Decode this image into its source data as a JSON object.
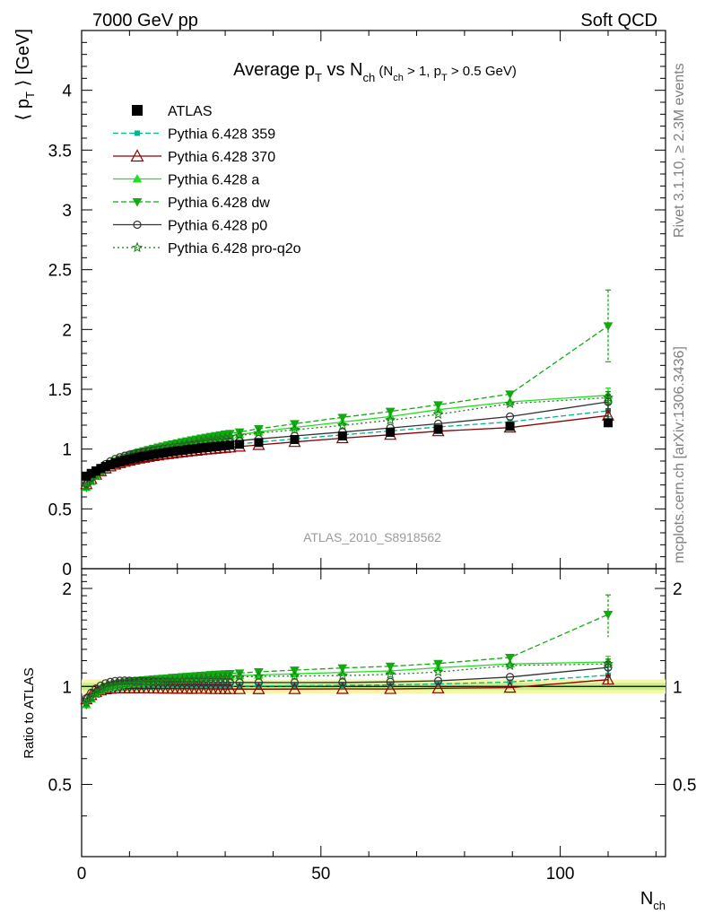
{
  "header": {
    "left": "7000 GeV pp",
    "right": "Soft QCD"
  },
  "side_labels": {
    "rivet": "Rivet 3.1.10, ≥ 2.3M events",
    "mcplots": "mcplots.cern.ch [arXiv:1306.3436]"
  },
  "chart_data": {
    "type": "line",
    "title": {
      "main": "Average p",
      "main_sub": "T",
      "mid": " vs N",
      "mid_sub": "ch",
      "cond_a": " (N",
      "cond_a_sub": "ch",
      "cond_b": " > 1, p",
      "cond_b_sub": "T",
      "cond_c": " > 0.5 GeV)"
    },
    "analysis_label": "ATLAS_2010_S8918562",
    "ylabel": {
      "pre": "⟨ p",
      "sub": "T",
      "post": " ⟩  [GeV]"
    },
    "ratio_ylabel": "Ratio to ATLAS",
    "xlabel": {
      "main": "N",
      "sub": "ch"
    },
    "xlim": [
      0,
      122
    ],
    "ylim": [
      0,
      4.5
    ],
    "ratio_ylim": [
      0.3,
      2.3
    ],
    "xticks": [
      {
        "v": 0,
        "label": "0"
      },
      {
        "v": 50,
        "label": "50"
      },
      {
        "v": 100,
        "label": "100"
      }
    ],
    "yticks": [
      {
        "v": 0,
        "label": "0"
      },
      {
        "v": 0.5,
        "label": "0.5"
      },
      {
        "v": 1,
        "label": "1"
      },
      {
        "v": 1.5,
        "label": "1.5"
      },
      {
        "v": 2,
        "label": "2"
      },
      {
        "v": 2.5,
        "label": "2.5"
      },
      {
        "v": 3,
        "label": "3"
      },
      {
        "v": 3.5,
        "label": "3.5"
      },
      {
        "v": 4,
        "label": "4"
      }
    ],
    "ratio_yticks": [
      {
        "v": 0.5,
        "label": "0.5"
      },
      {
        "v": 1,
        "label": "1"
      },
      {
        "v": 2,
        "label": "2"
      }
    ],
    "x": [
      1,
      2,
      3,
      4,
      5,
      6,
      7,
      8,
      9,
      10,
      11,
      12,
      13,
      14,
      15,
      16,
      17,
      18,
      19,
      20,
      21,
      22,
      23,
      24,
      25,
      26,
      27,
      28,
      29,
      30,
      31,
      33,
      37,
      44.5,
      54.5,
      64.5,
      74.5,
      89.5,
      110
    ],
    "series": [
      {
        "name": "ATLAS",
        "color": "#000000",
        "marker": "square",
        "dash": "none",
        "y": [
          0.774,
          0.797,
          0.818,
          0.838,
          0.855,
          0.87,
          0.883,
          0.895,
          0.906,
          0.916,
          0.925,
          0.933,
          0.941,
          0.948,
          0.955,
          0.962,
          0.968,
          0.974,
          0.979,
          0.985,
          0.99,
          0.995,
          1.0,
          1.004,
          1.009,
          1.013,
          1.017,
          1.021,
          1.025,
          1.029,
          1.033,
          1.04,
          1.055,
          1.08,
          1.11,
          1.14,
          1.165,
          1.19,
          1.22
        ],
        "err_last": 0.03
      },
      {
        "name": "Pythia 6.428 359",
        "color": "#00b88a",
        "marker": "smallsquare",
        "dash": "6,3",
        "y": [
          0.7,
          0.74,
          0.775,
          0.805,
          0.83,
          0.851,
          0.868,
          0.883,
          0.896,
          0.908,
          0.918,
          0.927,
          0.936,
          0.944,
          0.952,
          0.959,
          0.966,
          0.972,
          0.978,
          0.984,
          0.989,
          0.995,
          1.0,
          1.005,
          1.009,
          1.014,
          1.018,
          1.023,
          1.027,
          1.031,
          1.035,
          1.043,
          1.058,
          1.085,
          1.119,
          1.152,
          1.185,
          1.228,
          1.32
        ],
        "err_last": 0.05
      },
      {
        "name": "Pythia 6.428 370",
        "color": "#8b0000",
        "marker": "opentriangle",
        "dash": "none",
        "y": [
          0.707,
          0.75,
          0.786,
          0.815,
          0.838,
          0.856,
          0.871,
          0.883,
          0.894,
          0.904,
          0.913,
          0.921,
          0.928,
          0.935,
          0.942,
          0.948,
          0.954,
          0.959,
          0.964,
          0.969,
          0.974,
          0.979,
          0.983,
          0.987,
          0.992,
          0.996,
          0.999,
          1.003,
          1.007,
          1.01,
          1.014,
          1.021,
          1.035,
          1.06,
          1.091,
          1.12,
          1.15,
          1.18,
          1.28
        ],
        "err_last": 0.04
      },
      {
        "name": "Pythia 6.428 a",
        "color": "#22dd22",
        "marker": "triangle",
        "dash": "none",
        "y": [
          0.68,
          0.73,
          0.775,
          0.812,
          0.842,
          0.866,
          0.886,
          0.904,
          0.92,
          0.934,
          0.947,
          0.959,
          0.97,
          0.981,
          0.991,
          1.001,
          1.01,
          1.019,
          1.028,
          1.036,
          1.044,
          1.052,
          1.059,
          1.066,
          1.073,
          1.08,
          1.087,
          1.093,
          1.099,
          1.105,
          1.111,
          1.122,
          1.144,
          1.181,
          1.226,
          1.272,
          1.33,
          1.395,
          1.45
        ],
        "err_last": 0.06
      },
      {
        "name": "Pythia 6.428 dw",
        "color": "#11aa11",
        "marker": "invtriangle",
        "dash": "6,3",
        "y": [
          0.68,
          0.735,
          0.782,
          0.821,
          0.853,
          0.879,
          0.9,
          0.918,
          0.934,
          0.949,
          0.962,
          0.974,
          0.985,
          0.996,
          1.006,
          1.016,
          1.025,
          1.034,
          1.043,
          1.051,
          1.06,
          1.068,
          1.076,
          1.083,
          1.091,
          1.098,
          1.105,
          1.112,
          1.118,
          1.125,
          1.131,
          1.143,
          1.17,
          1.212,
          1.265,
          1.315,
          1.37,
          1.46,
          2.03
        ],
        "err_last": 0.3
      },
      {
        "name": "Pythia 6.428 p0",
        "color": "#333333",
        "marker": "opencircle",
        "dash": "none",
        "y": [
          0.712,
          0.762,
          0.806,
          0.843,
          0.874,
          0.898,
          0.917,
          0.932,
          0.944,
          0.954,
          0.962,
          0.97,
          0.977,
          0.984,
          0.99,
          0.996,
          1.002,
          1.007,
          1.012,
          1.017,
          1.022,
          1.027,
          1.031,
          1.036,
          1.04,
          1.044,
          1.048,
          1.052,
          1.056,
          1.06,
          1.063,
          1.07,
          1.085,
          1.11,
          1.142,
          1.177,
          1.212,
          1.272,
          1.395
        ],
        "err_last": 0.06
      },
      {
        "name": "Pythia 6.428 pro-q2o",
        "color": "#1a7a1a",
        "marker": "star",
        "dash": "2,3",
        "y": [
          0.69,
          0.736,
          0.778,
          0.814,
          0.844,
          0.868,
          0.888,
          0.905,
          0.92,
          0.934,
          0.946,
          0.957,
          0.968,
          0.978,
          0.987,
          0.996,
          1.005,
          1.013,
          1.021,
          1.029,
          1.037,
          1.044,
          1.051,
          1.058,
          1.065,
          1.072,
          1.078,
          1.084,
          1.09,
          1.096,
          1.102,
          1.113,
          1.133,
          1.162,
          1.198,
          1.242,
          1.29,
          1.38,
          1.43
        ],
        "err_last": 0.05
      }
    ]
  }
}
